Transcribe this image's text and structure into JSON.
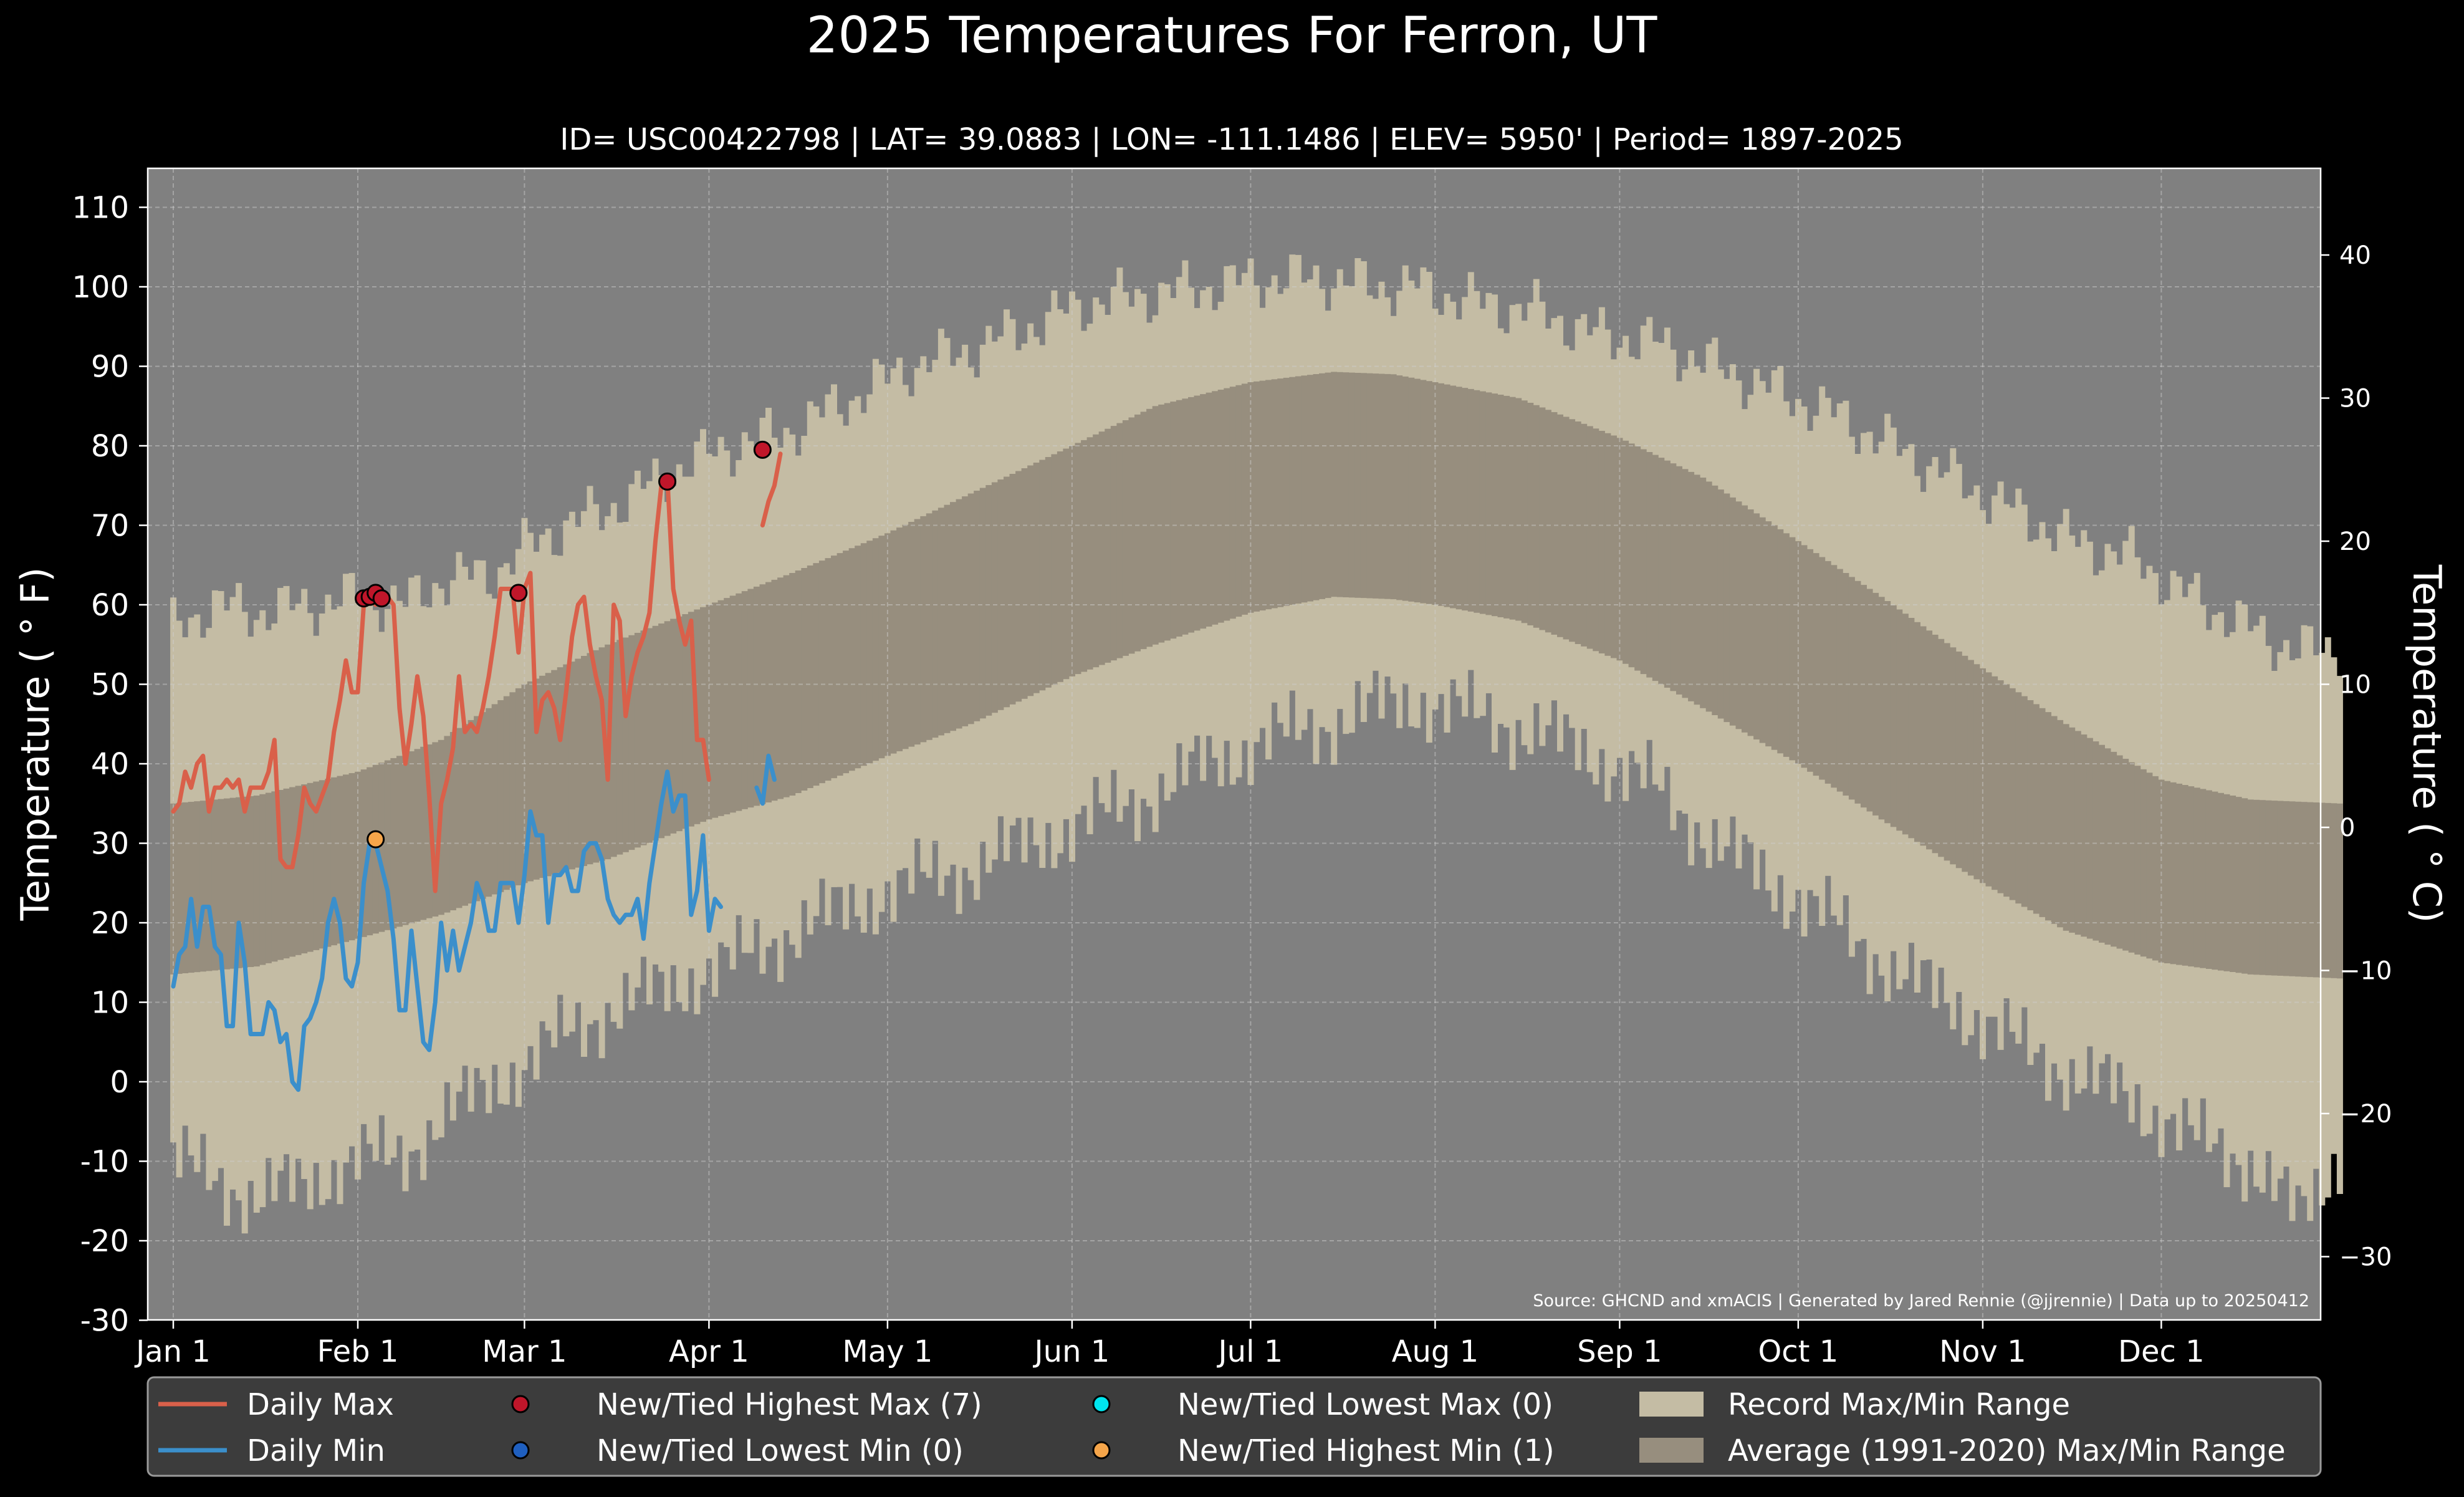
{
  "chart_data": {
    "type": "line",
    "title": "2025 Temperatures For Ferron, UT",
    "subtitle": "ID= USC00422798 | LAT= 39.0883 | LON= -111.1486 | ELEV= 5950' | Period= 1897-2025",
    "ylabel": "Temperature ($^\\circ$F)",
    "ylabel_display": "Temperature ( ° F)",
    "ylabel_right": "Temperature ( ° C)",
    "ylim": [
      -30,
      115
    ],
    "y_ticks": [
      "110",
      "100",
      "90",
      "80",
      "70",
      "60",
      "50",
      "40",
      "30",
      "20",
      "10",
      "0",
      "-10",
      "-20",
      "-30"
    ],
    "y2_ticks": [
      "40",
      "30",
      "20",
      "10",
      "0",
      "−10",
      "−20",
      "−30"
    ],
    "x_ticks": [
      "Jan 1",
      "Feb 1",
      "Mar 1",
      "Apr 1",
      "May 1",
      "Jun 1",
      "Jul 1",
      "Aug 1",
      "Sep 1",
      "Oct 1",
      "Nov 1",
      "Dec 1"
    ],
    "x_tick_days": [
      1,
      32,
      60,
      91,
      121,
      152,
      182,
      213,
      244,
      274,
      305,
      335
    ],
    "source_note": "Source: GHCND and xmACIS | Generated by Jared Rennie (@jjrennie) | Data up to 20250412",
    "grid": true,
    "legend_position": "bottom",
    "legend": [
      {
        "label": "Daily Max",
        "kind": "line",
        "color": "#d9604a"
      },
      {
        "label": "New/Tied Highest Max (7)",
        "kind": "dot",
        "color": "#c0162a"
      },
      {
        "label": "New/Tied Lowest Max (0)",
        "kind": "dot",
        "color": "#00e5ee"
      },
      {
        "label": "Record Max/Min Range",
        "kind": "patch",
        "color": "#c4bca4"
      },
      {
        "label": "Daily Min",
        "kind": "line",
        "color": "#3b8fcb"
      },
      {
        "label": "New/Tied Lowest Min (0)",
        "kind": "dot",
        "color": "#1f5fbf"
      },
      {
        "label": "New/Tied Highest Min (1)",
        "kind": "dot",
        "color": "#f5a54a"
      },
      {
        "label": "Average (1991-2020) Max/Min Range",
        "kind": "patch",
        "color": "#978e7e"
      }
    ],
    "colors": {
      "background": "#000000",
      "plot_background": "#808080",
      "record_band": "#c4bca4",
      "normal_band": "#978e7e",
      "daily_max": "#d9604a",
      "daily_min": "#3b8fcb",
      "record_high_max": "#c0162a",
      "record_high_min": "#f5a54a"
    },
    "record_high_anchors": {
      "days": [
        1,
        8,
        15,
        25,
        32,
        40,
        46,
        55,
        60,
        67,
        74,
        81,
        88,
        95,
        105,
        115,
        125,
        135,
        145,
        155,
        165,
        175,
        185,
        195,
        203,
        210,
        220,
        230,
        240,
        250,
        260,
        270,
        280,
        290,
        300,
        310,
        320,
        330,
        340,
        350,
        358,
        365
      ],
      "values": [
        57,
        60,
        59,
        60,
        61,
        60,
        63,
        64,
        67,
        70,
        72,
        75,
        78,
        80,
        82,
        86,
        90,
        92,
        95,
        98,
        99,
        100,
        101,
        101,
        100,
        100,
        98,
        97,
        94,
        93,
        90,
        87,
        84,
        80,
        76,
        72,
        68,
        66,
        61,
        57,
        54,
        55
      ]
    },
    "record_low_anchors": {
      "days": [
        1,
        8,
        15,
        25,
        32,
        40,
        46,
        55,
        60,
        67,
        74,
        81,
        88,
        95,
        105,
        115,
        125,
        135,
        145,
        155,
        165,
        175,
        185,
        195,
        203,
        210,
        220,
        230,
        240,
        250,
        260,
        270,
        280,
        290,
        300,
        310,
        320,
        330,
        340,
        350,
        358,
        365
      ],
      "values": [
        -10,
        -12,
        -15,
        -12,
        -10,
        -9,
        -5,
        0,
        2,
        6,
        9,
        11,
        13,
        15,
        19,
        22,
        25,
        27,
        30,
        33,
        36,
        40,
        43,
        45,
        47,
        48,
        46,
        44,
        41,
        37,
        30,
        25,
        20,
        14,
        10,
        5,
        1,
        -2,
        -7,
        -10,
        -17,
        -9
      ]
    },
    "normal_max_anchors": {
      "days": [
        1,
        15,
        32,
        46,
        60,
        74,
        91,
        105,
        121,
        135,
        152,
        166,
        182,
        196,
        206,
        213,
        227,
        244,
        258,
        274,
        288,
        305,
        319,
        335,
        350,
        365
      ],
      "values": [
        35,
        36,
        39,
        43,
        50,
        55,
        60,
        64,
        69,
        74,
        80,
        85,
        88,
        89.3,
        89,
        88,
        86,
        81,
        76,
        68,
        61,
        52,
        45,
        38,
        35.5,
        35
      ]
    },
    "normal_min_anchors": {
      "days": [
        1,
        15,
        32,
        46,
        60,
        74,
        91,
        105,
        121,
        135,
        152,
        166,
        182,
        196,
        206,
        213,
        227,
        244,
        258,
        274,
        288,
        305,
        319,
        335,
        350,
        365
      ],
      "values": [
        13.5,
        14.5,
        18,
        21,
        25,
        28,
        33,
        36,
        41,
        45,
        51,
        55,
        59,
        61,
        60.7,
        60,
        58,
        53,
        47,
        40,
        33,
        25,
        19,
        15,
        13.5,
        13
      ]
    },
    "daily_max_segments": [
      {
        "start_day": 1,
        "values": [
          34,
          35,
          39,
          37,
          40,
          41,
          34,
          37,
          37,
          38,
          37,
          38,
          34,
          37,
          37,
          37,
          39,
          43,
          28,
          27,
          27,
          31,
          37,
          35,
          34,
          36,
          38,
          44,
          48,
          53,
          49,
          49,
          60,
          61,
          60,
          61,
          61,
          60,
          47,
          40,
          45,
          51,
          46,
          36,
          24,
          35,
          38,
          42,
          51,
          44,
          45,
          44,
          47,
          51,
          56,
          62,
          62,
          62,
          54,
          62,
          64,
          44,
          48,
          49,
          47,
          43,
          49,
          56,
          60,
          61,
          55,
          51,
          48,
          38,
          60,
          58,
          46,
          51,
          54,
          56,
          59,
          68,
          75,
          76,
          62,
          58,
          55,
          58,
          43,
          43,
          38
        ]
      },
      {
        "start_day": 100,
        "values": [
          70,
          73,
          75,
          79
        ]
      }
    ],
    "daily_min_segments": [
      {
        "start_day": 1,
        "values": [
          12,
          16,
          17,
          23,
          17,
          22,
          22,
          17,
          16,
          7,
          7,
          20,
          15,
          6,
          6,
          6,
          10,
          9,
          5,
          6,
          0,
          -1,
          7,
          8,
          10,
          13,
          20,
          23,
          20,
          13,
          12,
          15,
          25,
          30,
          30,
          27,
          24,
          18,
          9,
          9,
          19,
          12,
          5,
          4,
          10,
          20,
          14,
          19,
          14,
          17,
          20,
          25,
          23,
          19,
          19,
          25,
          25,
          25,
          20,
          26,
          34,
          31,
          31,
          20,
          26,
          26,
          27,
          24,
          24,
          29,
          30,
          30,
          28,
          23,
          21,
          20,
          21,
          21,
          23,
          18,
          25,
          30,
          35,
          39,
          34,
          36,
          36,
          21,
          24,
          31,
          19,
          23,
          22
        ]
      },
      {
        "start_day": 99,
        "values": [
          37,
          35,
          41,
          38
        ]
      }
    ],
    "record_high_max_points": [
      {
        "day": 33,
        "value": 60.8
      },
      {
        "day": 34,
        "value": 61
      },
      {
        "day": 35,
        "value": 61.5
      },
      {
        "day": 36,
        "value": 60.8
      },
      {
        "day": 59,
        "value": 61.5
      },
      {
        "day": 84,
        "value": 75.5
      },
      {
        "day": 100,
        "value": 79.5
      }
    ],
    "record_high_min_points": [
      {
        "day": 35,
        "value": 30.5
      }
    ]
  }
}
